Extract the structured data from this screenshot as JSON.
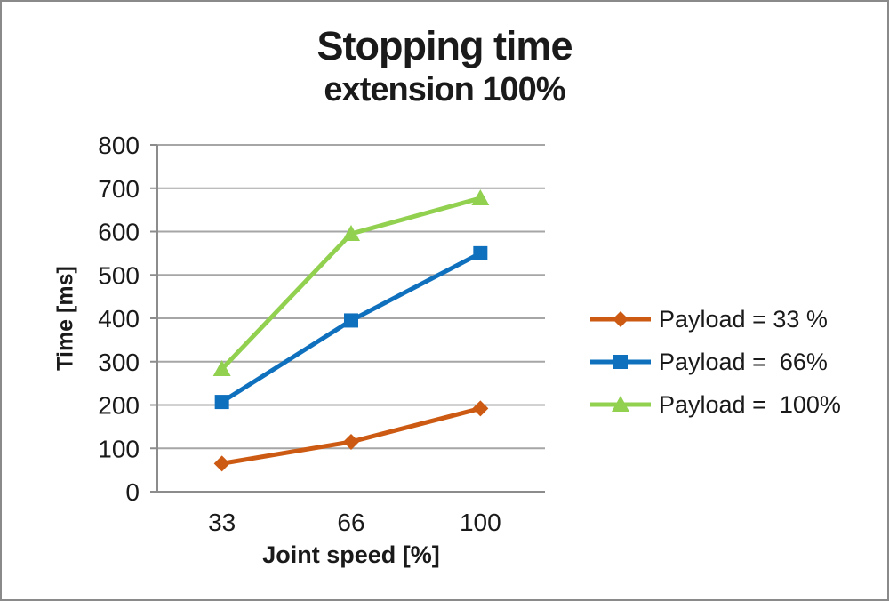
{
  "frame": {
    "background": "#FFFFFF",
    "border_color": "#8A8A8A"
  },
  "chart_data": {
    "type": "line",
    "title": "Stopping time",
    "subtitle": "extension 100%",
    "xlabel": "Joint speed [%]",
    "ylabel": "Time [ms]",
    "categories": [
      "33",
      "66",
      "100"
    ],
    "series": [
      {
        "name": "Payload = 33 %",
        "color": "#CC5A12",
        "marker": "diamond",
        "values": [
          65,
          115,
          192
        ]
      },
      {
        "name": "Payload =  66%",
        "color": "#0F70BE",
        "marker": "square",
        "values": [
          207,
          395,
          550
        ]
      },
      {
        "name": "Payload =  100%",
        "color": "#92D050",
        "marker": "triangle",
        "values": [
          283,
          595,
          677
        ]
      }
    ],
    "ylim": [
      0,
      800
    ],
    "ytick_step": 100,
    "ytick_labels": [
      "0",
      "100",
      "200",
      "300",
      "400",
      "500",
      "600",
      "700",
      "800"
    ],
    "grid": true,
    "legend_position": "right-middle",
    "colors": {
      "gridline": "#A6A6A6",
      "axis": "#8C8C8C",
      "text": "#1A1A1A"
    }
  }
}
